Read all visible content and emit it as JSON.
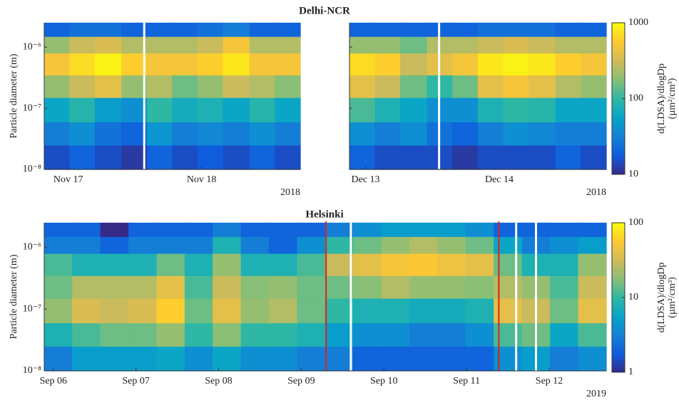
{
  "chart_data": [
    {
      "type": "heatmap",
      "title": "Delhi-NCR",
      "ylabel": "Particle diameter (m)",
      "colorbar_label": [
        "d(LDSA)/dlogDp",
        "(µm²/cm³)"
      ],
      "colormap": "parula",
      "log_color": true,
      "clim": [
        10,
        1000
      ],
      "cticks": [
        10,
        100,
        1000
      ],
      "log_y": true,
      "ylim": [
        1e-08,
        2.5e-06
      ],
      "yticks": [
        {
          "value": 1e-08,
          "label": "10⁻⁸"
        },
        {
          "value": 1e-07,
          "label": "10⁻⁷"
        },
        {
          "value": 1e-06,
          "label": "10⁻⁶"
        }
      ],
      "y_edges": [
        1e-08,
        2.5e-08,
        6e-08,
        1.5e-07,
        3.5e-07,
        8e-07,
        1.5e-06,
        2.5e-06
      ],
      "panels": [
        {
          "year": "2018",
          "xlim": [
            16.82,
            18.74
          ],
          "xticks": [
            {
              "value": 17,
              "label": "Nov 17"
            },
            {
              "value": 18,
              "label": "Nov 18"
            }
          ],
          "gaps": [
            17.57
          ],
          "x_edges": [
            16.82,
            17.01,
            17.2,
            17.4,
            17.59,
            17.78,
            17.97,
            18.16,
            18.36,
            18.55,
            18.74
          ],
          "values": [
            [
              15,
              20,
              15,
              12,
              20,
              15,
              18,
              15,
              20,
              15
            ],
            [
              30,
              40,
              25,
              20,
              45,
              30,
              35,
              30,
              40,
              30
            ],
            [
              60,
              90,
              50,
              40,
              100,
              70,
              80,
              60,
              90,
              60
            ],
            [
              200,
              300,
              400,
              200,
              250,
              150,
              200,
              300,
              250,
              180
            ],
            [
              500,
              700,
              900,
              600,
              500,
              500,
              600,
              800,
              500,
              500
            ],
            [
              200,
              300,
              350,
              250,
              250,
              250,
              300,
              500,
              250,
              250
            ],
            [
              20,
              25,
              25,
              20,
              20,
              20,
              25,
              30,
              20,
              20
            ]
          ]
        },
        {
          "year": "2018",
          "xlim": [
            12.88,
            14.8
          ],
          "xticks": [
            {
              "value": 13,
              "label": "Dec 13"
            },
            {
              "value": 14,
              "label": "Dec 14"
            }
          ],
          "gaps": [
            13.55
          ],
          "x_edges": [
            12.88,
            13.07,
            13.26,
            13.46,
            13.65,
            13.84,
            14.03,
            14.22,
            14.42,
            14.61,
            14.8
          ],
          "values": [
            [
              20,
              15,
              15,
              15,
              12,
              15,
              15,
              15,
              20,
              15
            ],
            [
              40,
              30,
              40,
              25,
              20,
              30,
              40,
              35,
              30,
              30
            ],
            [
              120,
              80,
              60,
              40,
              40,
              80,
              100,
              90,
              60,
              60
            ],
            [
              400,
              300,
              150,
              100,
              150,
              400,
              500,
              400,
              250,
              200
            ],
            [
              700,
              600,
              300,
              400,
              500,
              800,
              900,
              800,
              600,
              500
            ],
            [
              200,
              200,
              150,
              250,
              250,
              300,
              350,
              300,
              250,
              250
            ],
            [
              20,
              20,
              20,
              20,
              20,
              25,
              25,
              25,
              20,
              20
            ]
          ]
        }
      ]
    },
    {
      "type": "heatmap",
      "title": "Helsinki",
      "ylabel": "Particle diameter (m)",
      "colorbar_label": [
        "d(LDSA)/dlogDp",
        "(µm²/cm³)"
      ],
      "colormap": "parula",
      "log_color": true,
      "clim": [
        1,
        100
      ],
      "cticks": [
        1,
        10,
        100
      ],
      "log_y": true,
      "ylim": [
        1e-08,
        2.5e-06
      ],
      "yticks": [
        {
          "value": 1e-08,
          "label": "10⁻⁸"
        },
        {
          "value": 1e-07,
          "label": "10⁻⁷"
        },
        {
          "value": 1e-06,
          "label": "10⁻⁶"
        }
      ],
      "y_edges": [
        1e-08,
        2.5e-08,
        6e-08,
        1.5e-07,
        3.5e-07,
        8e-07,
        1.5e-06,
        2.5e-06
      ],
      "panels": [
        {
          "year": "2019",
          "xlim": [
            5.89,
            12.69
          ],
          "xticks": [
            {
              "value": 6,
              "label": "Sep 06"
            },
            {
              "value": 7,
              "label": "Sep 07"
            },
            {
              "value": 8,
              "label": "Sep 08"
            },
            {
              "value": 9,
              "label": "Sep 09"
            },
            {
              "value": 10,
              "label": "Sep 10"
            },
            {
              "value": 11,
              "label": "Sep 11"
            },
            {
              "value": 12,
              "label": "Sep 12"
            }
          ],
          "gaps": [
            9.6,
            11.6,
            11.84
          ],
          "vlines": [
            9.3,
            11.39
          ],
          "vline_color": "#e0201b",
          "x_edges": [
            5.89,
            6.23,
            6.57,
            6.91,
            7.25,
            7.59,
            7.93,
            8.27,
            8.61,
            8.95,
            9.29,
            9.63,
            9.97,
            10.31,
            10.65,
            10.99,
            11.33,
            11.67,
            12.01,
            12.35,
            12.69
          ],
          "values": [
            [
              3,
              5,
              5,
              5,
              6,
              4,
              6,
              4,
              4,
              3,
              3,
              2,
              2,
              2,
              2,
              2,
              4,
              5,
              3,
              4
            ],
            [
              8,
              12,
              15,
              15,
              20,
              10,
              18,
              10,
              10,
              8,
              5,
              4,
              4,
              3,
              3,
              4,
              12,
              15,
              6,
              12
            ],
            [
              20,
              35,
              30,
              35,
              60,
              15,
              40,
              20,
              25,
              15,
              10,
              8,
              8,
              7,
              7,
              8,
              40,
              30,
              15,
              40
            ],
            [
              15,
              25,
              25,
              25,
              40,
              12,
              30,
              18,
              20,
              15,
              15,
              18,
              25,
              20,
              20,
              18,
              25,
              20,
              12,
              30
            ],
            [
              12,
              8,
              8,
              8,
              15,
              8,
              20,
              8,
              8,
              12,
              30,
              40,
              50,
              55,
              45,
              40,
              15,
              8,
              8,
              20
            ],
            [
              3,
              3,
              2,
              3,
              3,
              3,
              8,
              3,
              2,
              4,
              10,
              15,
              20,
              25,
              20,
              15,
              6,
              3,
              4,
              5
            ],
            [
              2,
              2,
              1,
              2,
              2,
              2,
              3,
              2,
              2,
              2,
              3,
              4,
              5,
              5,
              5,
              4,
              2,
              2,
              2,
              2
            ]
          ]
        }
      ]
    }
  ]
}
